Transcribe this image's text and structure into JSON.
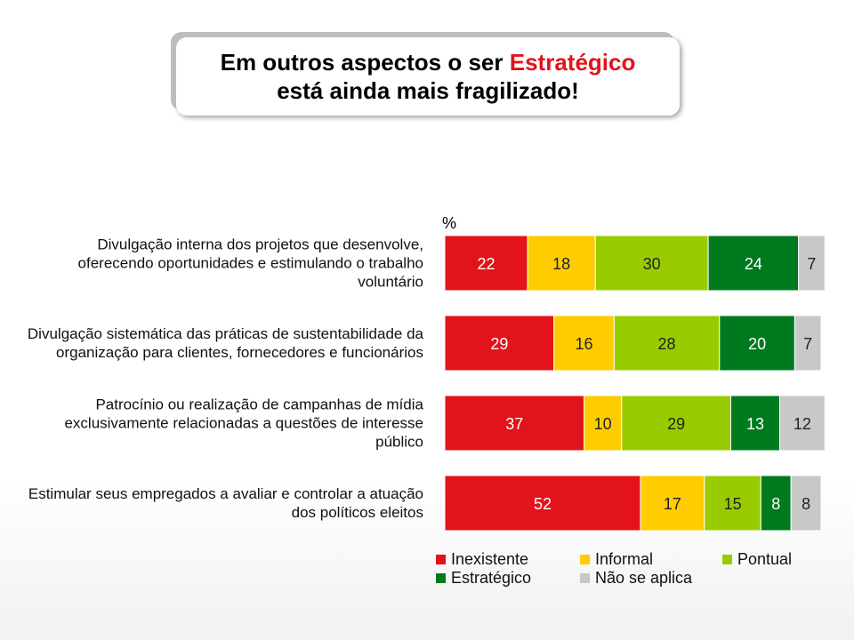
{
  "chart_data": {
    "type": "stacked-bar-horizontal",
    "title": [
      "Em outros aspectos o ser",
      "Estratégico",
      "está ainda mais fragilizado!"
    ],
    "unit_label": "%",
    "categories": [
      "Divulgação interna dos projetos que desenvolve, oferecendo oportunidades e estimulando o trabalho voluntário",
      "Divulgação sistemática das práticas de sustentabilidade da organização para clientes, fornecedores e funcionários",
      "Patrocínio ou realização de campanhas de mídia exclusivamente relacionadas a questões de interesse público",
      "Estimular seus empregados a avaliar e controlar a atuação dos políticos eleitos"
    ],
    "series": [
      {
        "name": "Inexistente",
        "color": "#e3131b",
        "values": [
          22,
          29,
          37,
          52
        ]
      },
      {
        "name": "Informal",
        "color": "#ffcc00",
        "values": [
          18,
          16,
          10,
          17
        ]
      },
      {
        "name": "Pontual",
        "color": "#99cc00",
        "values": [
          30,
          28,
          29,
          15
        ]
      },
      {
        "name": "Estratégico",
        "color": "#007a1f",
        "values": [
          24,
          20,
          13,
          8
        ]
      },
      {
        "name": "Não se aplica",
        "color": "#c8c8c8",
        "values": [
          7,
          7,
          12,
          8
        ]
      }
    ]
  }
}
